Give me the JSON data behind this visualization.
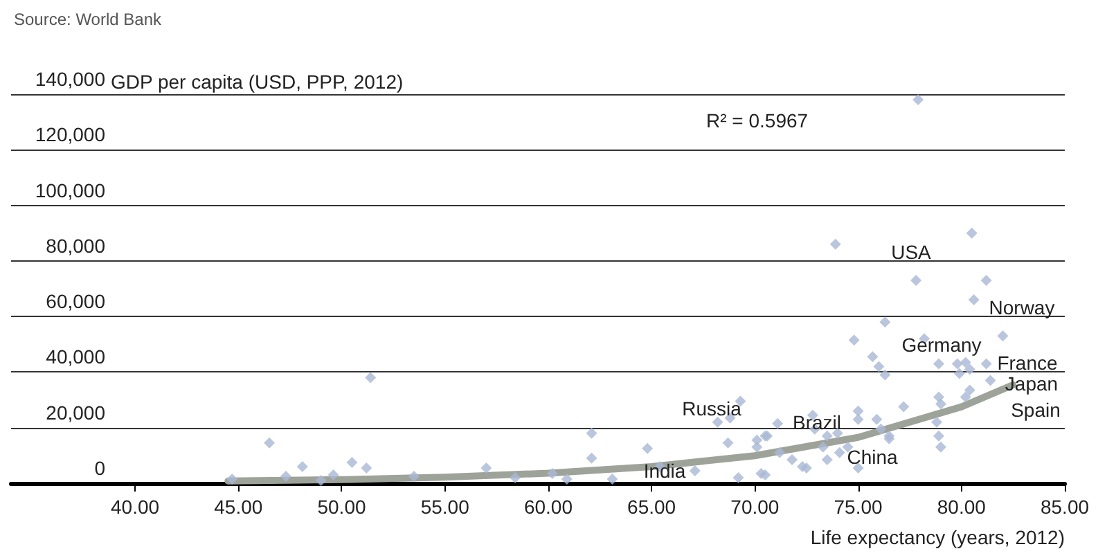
{
  "chart_data": {
    "type": "scatter",
    "xlabel": "Life expectancy (years, 2012)",
    "ylabel": "GDP per capita (USD, PPP, 2012)",
    "annotations": [
      "Source: World Bank",
      "R² = 0.5967",
      "USA",
      "Norway",
      "Germany",
      "France",
      "Japan",
      "Spain",
      "Russia",
      "Brazil",
      "China",
      "India"
    ],
    "series": [
      {
        "color": "#a9b8d4",
        "marker": "diamond",
        "x": [
          44.7,
          46.5,
          47.3,
          48.1,
          49.0,
          49.6,
          50.5,
          51.2,
          51.4,
          53.5,
          57.0,
          58.4,
          60.2,
          60.9,
          62.1,
          62.1,
          63.1,
          64.8,
          65.4,
          67.1,
          68.2,
          68.7,
          68.8,
          69.2,
          69.3,
          70.1,
          70.6,
          73.9,
          80.5,
          77.8,
          81.2,
          80.6,
          76.3,
          82.0,
          74.8,
          78.2,
          75.7,
          76.0,
          76.3,
          78.9,
          79.8,
          80.2,
          80.4,
          79.9,
          81.4,
          81.2,
          78.9,
          79.0,
          80.2,
          80.4,
          77.2,
          75.0,
          75.0,
          75.9,
          76.1,
          76.5,
          78.8,
          78.9,
          79.0,
          72.8,
          71.1,
          72.9,
          73.5,
          74.0,
          73.3,
          70.5,
          70.1,
          71.2,
          71.8,
          72.5,
          73.5,
          75.0,
          70.3,
          70.5,
          72.3,
          74.1,
          74.5,
          76.5,
          77.9
        ],
        "values": [
          1500,
          14500,
          2500,
          6000,
          1000,
          3000,
          7500,
          5500,
          38000,
          2500,
          5500,
          2000,
          3500,
          1500,
          18000,
          9000,
          1500,
          12500,
          6000,
          4500,
          22000,
          14500,
          23500,
          2000,
          29500,
          15500,
          17000,
          86000,
          90000,
          73000,
          73000,
          66000,
          58000,
          53000,
          51500,
          52000,
          45500,
          42000,
          39000,
          43000,
          43000,
          43500,
          41000,
          39500,
          37000,
          43000,
          31000,
          28500,
          31000,
          33500,
          27500,
          26000,
          23000,
          23000,
          19500,
          17000,
          22000,
          17000,
          13000,
          24500,
          21500,
          19500,
          17000,
          18000,
          13000,
          17000,
          13000,
          11000,
          8500,
          5500,
          8500,
          5500,
          3500,
          3000,
          6000,
          11000,
          13000,
          16000,
          138000
        ]
      },
      {
        "type": "line",
        "color": "#9ea39a",
        "marker": "none",
        "line_style": "solid",
        "x": [
          44.5,
          50,
          55,
          60,
          65,
          70,
          75,
          80,
          82.5
        ],
        "values": [
          800,
          1300,
          2200,
          3600,
          6000,
          9900,
          16500,
          27500,
          35400
        ]
      }
    ],
    "xlim": [
      34,
      85
    ],
    "xticks": [
      {
        "value": 40,
        "label": "40.00"
      },
      {
        "value": 45,
        "label": "45.00"
      },
      {
        "value": 50,
        "label": "50.00"
      },
      {
        "value": 55,
        "label": "55.00"
      },
      {
        "value": 60,
        "label": "60.00"
      },
      {
        "value": 65,
        "label": "65.00"
      },
      {
        "value": 70,
        "label": "70.00"
      },
      {
        "value": 75,
        "label": "75.00"
      },
      {
        "value": 80,
        "label": "80.00"
      },
      {
        "value": 85,
        "label": "85.00"
      }
    ],
    "ylim": [
      0,
      140000
    ],
    "yticks": [
      0,
      {
        "value": 20000,
        "label": "20,000"
      },
      {
        "value": 40000,
        "label": "40,000"
      },
      {
        "value": 60000,
        "label": "60,000"
      },
      {
        "value": 80000,
        "label": "80,000"
      },
      {
        "value": 100000,
        "label": "100,000"
      },
      {
        "value": 120000,
        "label": "120,000"
      },
      {
        "value": 140000,
        "label": "140,000"
      }
    ],
    "grid": "y"
  }
}
